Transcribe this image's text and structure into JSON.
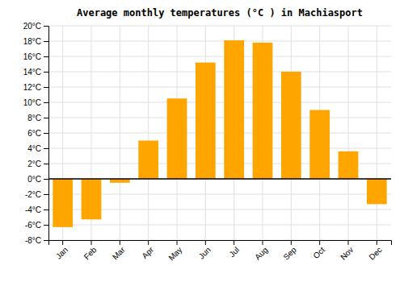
{
  "chart_data": {
    "type": "bar",
    "title": "Average monthly temperatures (°C ) in Machiasport",
    "categories": [
      "Jan",
      "Feb",
      "Mar",
      "Apr",
      "May",
      "Jun",
      "Jul",
      "Aug",
      "Sep",
      "Oct",
      "Nov",
      "Dec"
    ],
    "values": [
      -6.3,
      -5.3,
      -0.5,
      5.0,
      10.5,
      15.2,
      18.1,
      17.8,
      14.0,
      9.0,
      3.6,
      -3.3
    ],
    "color": "#FFA500",
    "ylim": [
      -8,
      20
    ],
    "yticks": [
      {
        "value": -8,
        "label": "-8°C"
      },
      {
        "value": -6,
        "label": "-6°C"
      },
      {
        "value": -4,
        "label": "-4°C"
      },
      {
        "value": -2,
        "label": "-2°C"
      },
      {
        "value": 0,
        "label": "0°C"
      },
      {
        "value": 2,
        "label": "2°C"
      },
      {
        "value": 4,
        "label": "4°C"
      },
      {
        "value": 6,
        "label": "6°C"
      },
      {
        "value": 8,
        "label": "8°C"
      },
      {
        "value": 10,
        "label": "10°C"
      },
      {
        "value": 12,
        "label": "12°C"
      },
      {
        "value": 14,
        "label": "14°C"
      },
      {
        "value": 16,
        "label": "16°C"
      },
      {
        "value": 18,
        "label": "18°C"
      },
      {
        "value": 20,
        "label": "20°C"
      }
    ],
    "grid": true
  }
}
